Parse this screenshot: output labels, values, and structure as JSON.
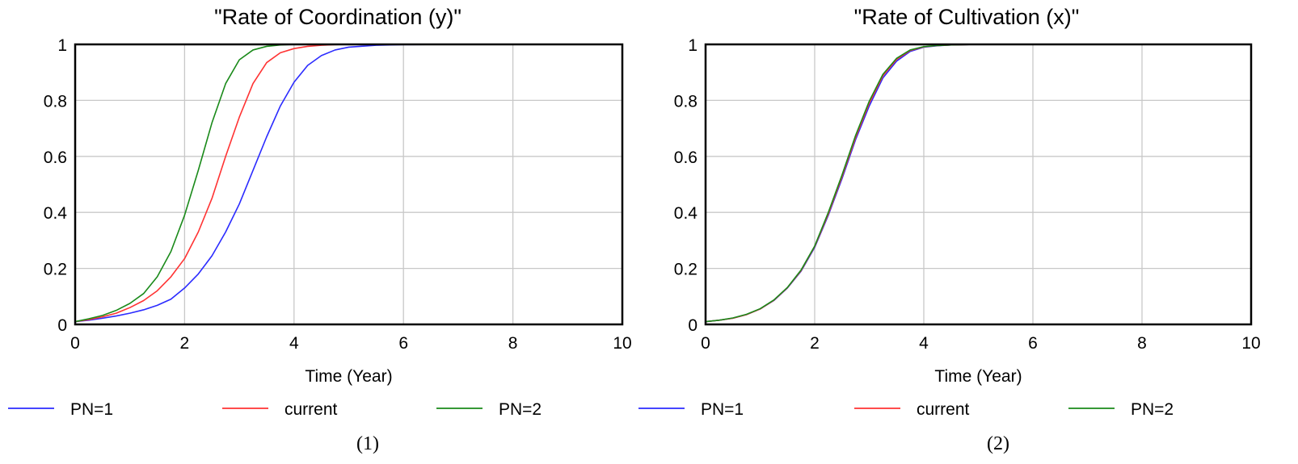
{
  "colors": {
    "pn1": "#2b2bff",
    "current": "#ff3333",
    "pn2": "#1a8a1a",
    "grid": "#c8c8c8",
    "frame": "#000000"
  },
  "chart_data": [
    {
      "type": "line",
      "title": "\"Rate of Coordination (y)\"",
      "xlabel": "Time (Year)",
      "ylabel": "",
      "xlim": [
        0,
        10
      ],
      "ylim": [
        0,
        1
      ],
      "x_ticks": [
        "0",
        "2",
        "4",
        "6",
        "8",
        "10"
      ],
      "y_ticks": [
        "0",
        "0.2",
        "0.4",
        "0.6",
        "0.8",
        "1"
      ],
      "grid": true,
      "legend_position": "bottom",
      "caption": "(1)",
      "x": [
        0,
        0.25,
        0.5,
        0.75,
        1,
        1.25,
        1.5,
        1.75,
        2,
        2.25,
        2.5,
        2.75,
        3,
        3.25,
        3.5,
        3.75,
        4,
        4.25,
        4.5,
        4.75,
        5,
        5.5,
        6,
        7,
        8,
        9,
        10
      ],
      "series": [
        {
          "name": "PN=1",
          "color_key": "pn1",
          "values": [
            0.01,
            0.015,
            0.022,
            0.03,
            0.04,
            0.052,
            0.068,
            0.09,
            0.13,
            0.18,
            0.245,
            0.33,
            0.43,
            0.55,
            0.67,
            0.78,
            0.865,
            0.925,
            0.96,
            0.98,
            0.99,
            0.997,
            0.999,
            1,
            1,
            1,
            1
          ]
        },
        {
          "name": "current",
          "color_key": "current",
          "values": [
            0.01,
            0.017,
            0.027,
            0.04,
            0.06,
            0.085,
            0.12,
            0.17,
            0.235,
            0.33,
            0.45,
            0.6,
            0.74,
            0.86,
            0.935,
            0.97,
            0.985,
            0.993,
            0.997,
            0.999,
            1,
            1,
            1,
            1,
            1,
            1,
            1
          ]
        },
        {
          "name": "PN=2",
          "color_key": "pn2",
          "values": [
            0.01,
            0.02,
            0.032,
            0.05,
            0.075,
            0.11,
            0.17,
            0.26,
            0.39,
            0.55,
            0.72,
            0.86,
            0.945,
            0.98,
            0.993,
            0.998,
            1,
            1,
            1,
            1,
            1,
            1,
            1,
            1,
            1,
            1,
            1
          ]
        }
      ]
    },
    {
      "type": "line",
      "title": "\"Rate of Cultivation (x)\"",
      "xlabel": "Time (Year)",
      "ylabel": "",
      "xlim": [
        0,
        10
      ],
      "ylim": [
        0,
        1
      ],
      "x_ticks": [
        "0",
        "2",
        "4",
        "6",
        "8",
        "10"
      ],
      "y_ticks": [
        "0",
        "0.2",
        "0.4",
        "0.6",
        "0.8",
        "1"
      ],
      "grid": true,
      "legend_position": "bottom",
      "caption": "(2)",
      "x": [
        0,
        0.25,
        0.5,
        0.75,
        1,
        1.25,
        1.5,
        1.75,
        2,
        2.25,
        2.5,
        2.75,
        3,
        3.25,
        3.5,
        3.75,
        4,
        4.25,
        4.5,
        4.75,
        5,
        5.5,
        6,
        7,
        8,
        9,
        10
      ],
      "series": [
        {
          "name": "PN=1",
          "color_key": "pn1",
          "values": [
            0.01,
            0.015,
            0.022,
            0.035,
            0.055,
            0.085,
            0.13,
            0.19,
            0.275,
            0.39,
            0.52,
            0.66,
            0.78,
            0.88,
            0.94,
            0.975,
            0.99,
            0.995,
            0.998,
            0.999,
            1,
            1,
            1,
            1,
            1,
            1,
            1
          ]
        },
        {
          "name": "current",
          "color_key": "current",
          "values": [
            0.01,
            0.015,
            0.022,
            0.035,
            0.055,
            0.086,
            0.131,
            0.192,
            0.278,
            0.395,
            0.527,
            0.668,
            0.79,
            0.888,
            0.946,
            0.978,
            0.991,
            0.996,
            0.998,
            0.999,
            1,
            1,
            1,
            1,
            1,
            1,
            1
          ]
        },
        {
          "name": "PN=2",
          "color_key": "pn2",
          "values": [
            0.01,
            0.015,
            0.023,
            0.036,
            0.056,
            0.087,
            0.132,
            0.194,
            0.28,
            0.4,
            0.533,
            0.675,
            0.797,
            0.893,
            0.95,
            0.98,
            0.992,
            0.996,
            0.998,
            0.999,
            1,
            1,
            1,
            1,
            1,
            1,
            1
          ]
        }
      ]
    }
  ]
}
